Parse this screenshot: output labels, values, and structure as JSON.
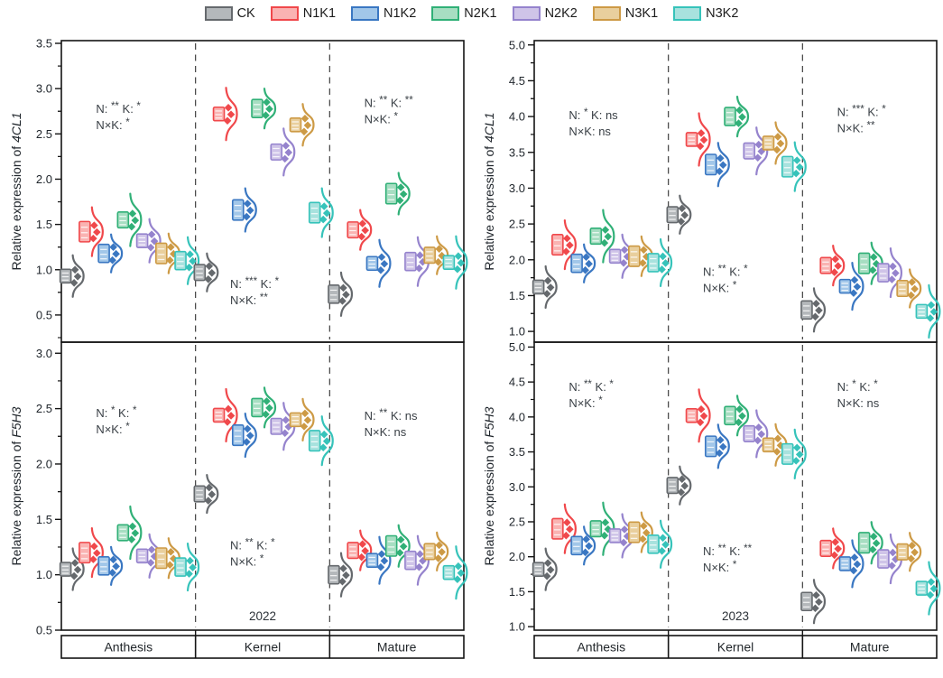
{
  "figure": {
    "background": "#ffffff"
  },
  "legend": {
    "items": [
      {
        "label": "CK",
        "fill": "#b4b8bb",
        "stroke": "#65696d"
      },
      {
        "label": "N1K1",
        "fill": "#fab3b2",
        "stroke": "#f0484b"
      },
      {
        "label": "N1K2",
        "fill": "#a2c7e9",
        "stroke": "#3a77c2"
      },
      {
        "label": "N2K1",
        "fill": "#a7dec2",
        "stroke": "#30b077"
      },
      {
        "label": "N2K2",
        "fill": "#cfc4e8",
        "stroke": "#9583cd"
      },
      {
        "label": "N3K1",
        "fill": "#e9cf9d",
        "stroke": "#cd9a45"
      },
      {
        "label": "N3K2",
        "fill": "#a8e2de",
        "stroke": "#36c3ba"
      }
    ]
  },
  "chart_data": [
    {
      "type": "violin",
      "ylabel_text": "Relative expression of ",
      "ylabel_gene": "4CL1",
      "ydomain": [
        0.2,
        3.53
      ],
      "yticks": [
        0.5,
        1.0,
        1.5,
        2.0,
        2.5,
        3.0,
        3.5
      ],
      "stages": [
        "Anthesis",
        "Kernel",
        "Mature"
      ],
      "treatments": [
        "CK",
        "N1K1",
        "N1K2",
        "N2K1",
        "N2K2",
        "N3K1",
        "N3K2"
      ],
      "values": {
        "Anthesis": [
          0.93,
          1.42,
          1.18,
          1.55,
          1.32,
          1.18,
          1.1
        ],
        "Kernel": [
          0.97,
          2.72,
          1.66,
          2.78,
          2.3,
          2.6,
          1.63
        ],
        "Mature": [
          0.73,
          1.44,
          1.07,
          1.84,
          1.09,
          1.16,
          1.08
        ]
      },
      "annotations": [
        {
          "stage": "Anthesis",
          "line1": "N: ** K: *",
          "line2": "N×K: *",
          "fy": 0.24
        },
        {
          "stage": "Kernel",
          "line1": "N: *** K: *",
          "line2": "N×K: **",
          "fy": 0.82
        },
        {
          "stage": "Mature",
          "line1": "N: ** K: **",
          "line2": "N×K: *",
          "fy": 0.22
        }
      ]
    },
    {
      "type": "violin",
      "ylabel_text": "Relative expression of ",
      "ylabel_gene": "4CL1",
      "ydomain": [
        0.85,
        5.06
      ],
      "yticks": [
        1.0,
        1.5,
        2.0,
        2.5,
        3.0,
        3.5,
        4.0,
        4.5,
        5.0
      ],
      "stages": [
        "Anthesis",
        "Kernel",
        "Mature"
      ],
      "treatments": [
        "CK",
        "N1K1",
        "N1K2",
        "N2K1",
        "N2K2",
        "N3K1",
        "N3K2"
      ],
      "values": {
        "Anthesis": [
          1.62,
          2.21,
          1.95,
          2.33,
          2.05,
          2.05,
          1.96
        ],
        "Kernel": [
          2.63,
          3.68,
          3.33,
          4.0,
          3.52,
          3.63,
          3.3
        ],
        "Mature": [
          1.3,
          1.92,
          1.63,
          1.95,
          1.82,
          1.6,
          1.28
        ]
      },
      "annotations": [
        {
          "stage": "Anthesis",
          "line1": "N: * K: ns",
          "line2": "N×K: ns",
          "fy": 0.26
        },
        {
          "stage": "Kernel",
          "line1": "N: ** K: *",
          "line2": "N×K: *",
          "fy": 0.78
        },
        {
          "stage": "Mature",
          "line1": "N: *** K: *",
          "line2": "N×K: **",
          "fy": 0.25
        }
      ]
    },
    {
      "type": "violin",
      "ylabel_text": "Relative expression of ",
      "ylabel_gene": "F5H3",
      "ydomain": [
        0.5,
        3.1
      ],
      "yticks": [
        0.5,
        1.0,
        1.5,
        2.0,
        2.5,
        3.0
      ],
      "stages": [
        "Anthesis",
        "Kernel",
        "Mature"
      ],
      "treatments": [
        "CK",
        "N1K1",
        "N1K2",
        "N2K1",
        "N2K2",
        "N3K1",
        "N3K2"
      ],
      "values": {
        "Anthesis": [
          1.05,
          1.2,
          1.08,
          1.38,
          1.17,
          1.15,
          1.07
        ],
        "Kernel": [
          1.73,
          2.44,
          2.26,
          2.51,
          2.34,
          2.4,
          2.21
        ],
        "Mature": [
          1.0,
          1.22,
          1.13,
          1.26,
          1.13,
          1.21,
          1.02
        ]
      },
      "annotations": [
        {
          "stage": "Anthesis",
          "line1": "N: * K: *",
          "line2": "N×K: *",
          "fy": 0.26
        },
        {
          "stage": "Kernel",
          "line1": "N: ** K: *",
          "line2": "N×K: *",
          "fy": 0.72
        },
        {
          "stage": "Mature",
          "line1": "N: ** K: ns",
          "line2": "N×K: ns",
          "fy": 0.27
        }
      ],
      "year_label": "2022",
      "show_stage_labels": true
    },
    {
      "type": "violin",
      "ylabel_text": "Relative expression of ",
      "ylabel_gene": "F5H3",
      "ydomain": [
        0.95,
        5.07
      ],
      "yticks": [
        1.0,
        1.5,
        2.0,
        2.5,
        3.0,
        3.5,
        4.0,
        4.5,
        5.0
      ],
      "stages": [
        "Anthesis",
        "Kernel",
        "Mature"
      ],
      "treatments": [
        "CK",
        "N1K1",
        "N1K2",
        "N2K1",
        "N2K2",
        "N3K1",
        "N3K2"
      ],
      "values": {
        "Anthesis": [
          1.82,
          2.4,
          2.16,
          2.4,
          2.3,
          2.35,
          2.18
        ],
        "Kernel": [
          3.02,
          4.02,
          3.58,
          4.02,
          3.76,
          3.6,
          3.47
        ],
        "Mature": [
          1.36,
          2.12,
          1.9,
          2.2,
          1.97,
          2.07,
          1.55
        ]
      },
      "annotations": [
        {
          "stage": "Anthesis",
          "line1": "N: ** K: *",
          "line2": "N×K: *",
          "fy": 0.17
        },
        {
          "stage": "Kernel",
          "line1": "N: ** K: **",
          "line2": "N×K: *",
          "fy": 0.74
        },
        {
          "stage": "Mature",
          "line1": "N: * K: *",
          "line2": "N×K: ns",
          "fy": 0.17
        }
      ],
      "year_label": "2023",
      "show_stage_labels": true
    }
  ]
}
